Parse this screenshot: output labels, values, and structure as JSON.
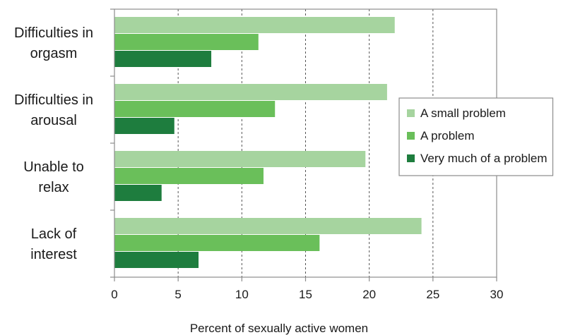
{
  "chart_data": {
    "type": "bar",
    "orientation": "horizontal",
    "title": "",
    "xlabel": "Percent of sexually active women",
    "ylabel": "",
    "xlim": [
      0,
      30
    ],
    "xticks": [
      0,
      5,
      10,
      15,
      20,
      25,
      30
    ],
    "grid": "vertical dashed",
    "legend_position": "right",
    "categories": [
      [
        "Difficulties in",
        "orgasm"
      ],
      [
        "Difficulties in",
        "arousal"
      ],
      [
        "Unable to",
        "relax"
      ],
      [
        "Lack of",
        "interest"
      ]
    ],
    "series": [
      {
        "name": "A small problem",
        "color": "#a6d49f",
        "values": [
          22.0,
          21.4,
          19.7,
          24.1
        ]
      },
      {
        "name": "A problem",
        "color": "#6abf5a",
        "values": [
          11.3,
          12.6,
          11.7,
          16.1
        ]
      },
      {
        "name": "Very much of a problem",
        "color": "#1e7d3e",
        "values": [
          7.6,
          4.7,
          3.7,
          6.6
        ]
      }
    ]
  }
}
